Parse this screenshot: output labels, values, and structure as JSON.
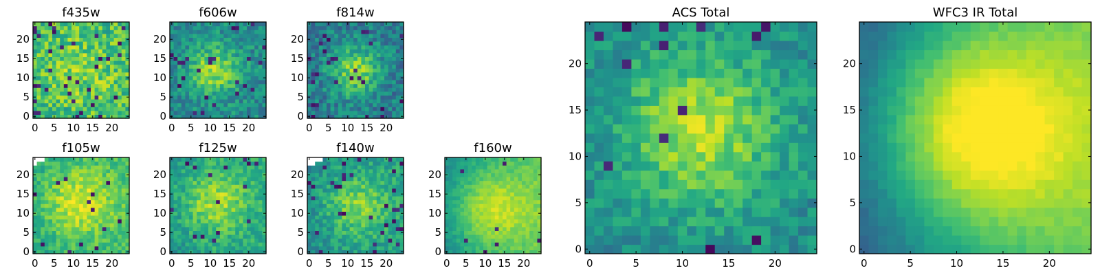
{
  "figure": {
    "colormap": "viridis",
    "background": "#ffffff"
  },
  "chart_data": [
    {
      "type": "heatmap",
      "title": "f435w",
      "size": 25,
      "seed": 11,
      "cx": 12,
      "cy": 12,
      "sigma": 7,
      "amp": 0.12,
      "base": 0.68,
      "noise": 0.38,
      "dark": 0.05,
      "ramp": 0,
      "xticks": [
        0,
        5,
        10,
        15,
        20
      ],
      "yticks": [
        0,
        5,
        10,
        15,
        20
      ],
      "masked": []
    },
    {
      "type": "heatmap",
      "title": "f606w",
      "size": 25,
      "seed": 23,
      "cx": 11,
      "cy": 12,
      "sigma": 4.5,
      "amp": 0.38,
      "base": 0.48,
      "noise": 0.3,
      "dark": 0.03,
      "ramp": 0,
      "xticks": [
        0,
        5,
        10,
        15,
        20
      ],
      "yticks": [
        0,
        5,
        10,
        15,
        20
      ],
      "masked": []
    },
    {
      "type": "heatmap",
      "title": "f814w",
      "size": 25,
      "seed": 37,
      "cx": 12,
      "cy": 12,
      "sigma": 4.5,
      "amp": 0.4,
      "base": 0.42,
      "noise": 0.32,
      "dark": 0.05,
      "ramp": 0,
      "xticks": [
        0,
        5,
        10,
        15,
        20
      ],
      "yticks": [
        0,
        5,
        10,
        15,
        20
      ],
      "masked": []
    },
    {
      "type": "heatmap",
      "title": "f105w",
      "size": 25,
      "seed": 41,
      "cx": 11,
      "cy": 13,
      "sigma": 7,
      "amp": 0.3,
      "base": 0.58,
      "noise": 0.22,
      "dark": 0.02,
      "ramp": 0.1,
      "xticks": [
        0,
        5,
        10,
        15,
        20
      ],
      "yticks": [
        0,
        5,
        10,
        15,
        20
      ],
      "masked": [
        [
          0,
          24
        ],
        [
          1,
          24
        ],
        [
          2,
          24
        ],
        [
          0,
          23
        ]
      ]
    },
    {
      "type": "heatmap",
      "title": "f125w",
      "size": 25,
      "seed": 53,
      "cx": 11,
      "cy": 13,
      "sigma": 6,
      "amp": 0.3,
      "base": 0.52,
      "noise": 0.24,
      "dark": 0.03,
      "ramp": 0.1,
      "xticks": [
        0,
        5,
        10,
        15,
        20
      ],
      "yticks": [
        0,
        5,
        10,
        15,
        20
      ],
      "masked": []
    },
    {
      "type": "heatmap",
      "title": "f140w",
      "size": 25,
      "seed": 67,
      "cx": 12,
      "cy": 12,
      "sigma": 6,
      "amp": 0.28,
      "base": 0.48,
      "noise": 0.24,
      "dark": 0.05,
      "ramp": 0.1,
      "xticks": [
        0,
        5,
        10,
        15,
        20
      ],
      "yticks": [
        0,
        5,
        10,
        15,
        20
      ],
      "masked": [
        [
          0,
          24
        ],
        [
          1,
          24
        ],
        [
          2,
          24
        ],
        [
          3,
          24
        ],
        [
          0,
          23
        ],
        [
          1,
          23
        ]
      ]
    },
    {
      "type": "heatmap",
      "title": "f160w",
      "size": 25,
      "seed": 79,
      "cx": 11,
      "cy": 11,
      "sigma": 7,
      "amp": 0.3,
      "base": 0.48,
      "noise": 0.12,
      "dark": 0.01,
      "ramp": 0.28,
      "xticks": [
        0,
        5,
        10,
        15,
        20
      ],
      "yticks": [
        0,
        5,
        10,
        15,
        20
      ],
      "masked": []
    },
    {
      "type": "heatmap",
      "title": "ACS Total",
      "size": 25,
      "seed": 97,
      "cx": 12,
      "cy": 13,
      "sigma": 6,
      "amp": 0.4,
      "base": 0.48,
      "noise": 0.24,
      "dark": 0.03,
      "ramp": 0,
      "xticks": [
        0,
        5,
        10,
        15,
        20
      ],
      "yticks": [
        0,
        5,
        10,
        15,
        20
      ],
      "masked": []
    },
    {
      "type": "heatmap",
      "title": "WFC3 IR Total",
      "size": 25,
      "seed": 131,
      "cx": 12,
      "cy": 13,
      "sigma": 8,
      "amp": 0.55,
      "base": 0.28,
      "noise": 0.06,
      "dark": 0,
      "ramp": 0.45,
      "xticks": [
        0,
        5,
        10,
        15,
        20
      ],
      "yticks": [
        0,
        5,
        10,
        15,
        20
      ],
      "masked": []
    }
  ]
}
